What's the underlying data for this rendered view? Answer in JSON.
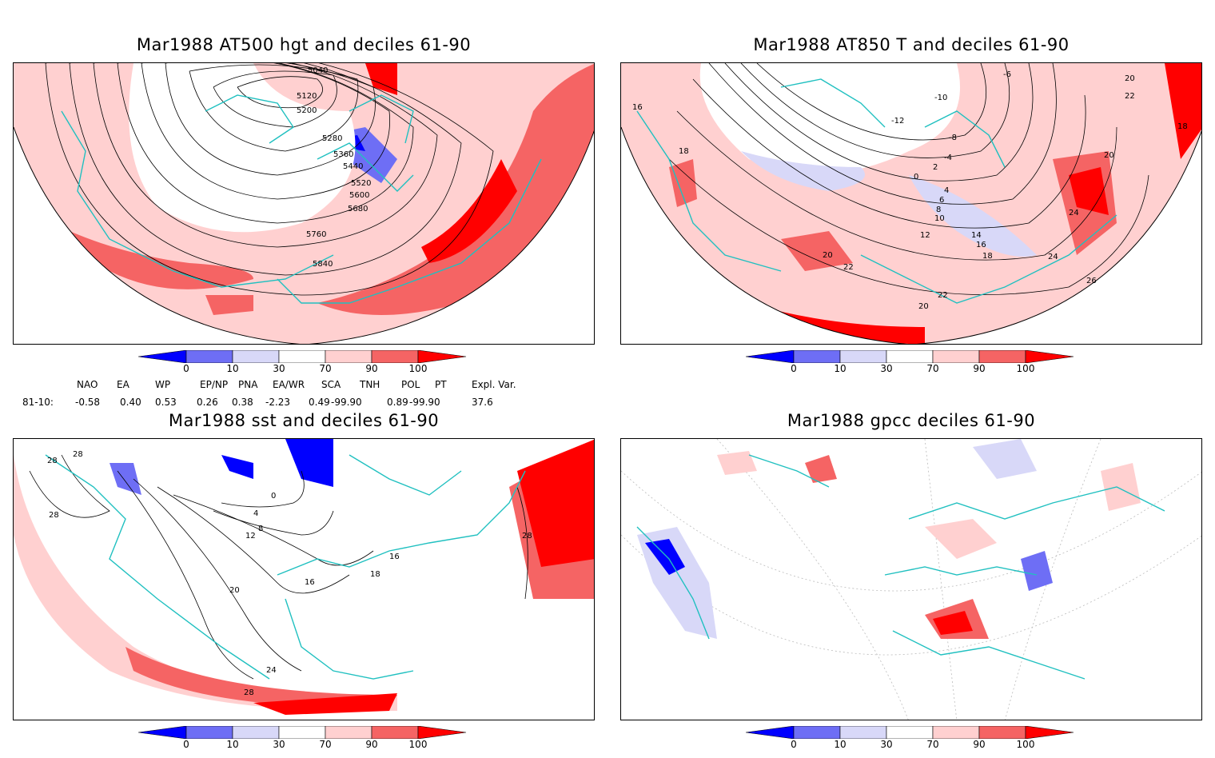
{
  "panels": [
    {
      "title": "Mar1988 AT500 hgt and deciles 61-90",
      "contour_labels": [
        "5040",
        "5120",
        "5200",
        "5280",
        "5360",
        "5440",
        "5520",
        "5600",
        "5680",
        "5760",
        "5840"
      ]
    },
    {
      "title": "Mar1988 AT850 T and deciles 61-90",
      "contour_labels": [
        "16",
        "18",
        "-6",
        "-10",
        "-12",
        "-8",
        "-4",
        "0",
        "2",
        "4",
        "6",
        "8",
        "10",
        "12",
        "14",
        "16",
        "18",
        "20",
        "22",
        "24",
        "26",
        "20",
        "22",
        "18",
        "20",
        "24",
        "22",
        "20"
      ]
    },
    {
      "title": "Mar1988 sst and deciles 61-90",
      "contour_labels": [
        "28",
        "28",
        "28",
        "0",
        "4",
        "8",
        "12",
        "16",
        "16",
        "18",
        "20",
        "24",
        "28",
        "28"
      ]
    },
    {
      "title": "Mar1988 gpcc deciles 61-90",
      "contour_labels": []
    }
  ],
  "colorbar": {
    "ticks": [
      "0",
      "10",
      "30",
      "70",
      "90",
      "100"
    ],
    "colors": [
      "#0000ff",
      "#6e6ef5",
      "#d8d8f8",
      "#ffffff",
      "#ffd0d0",
      "#f56464",
      "#ff0000"
    ]
  },
  "indices": {
    "headers": [
      "NAO",
      "EA",
      "WP",
      "EP/NP",
      "PNA",
      "EA/WR",
      "SCA",
      "TNH",
      "POL",
      "PT",
      "Expl. Var."
    ],
    "row_label": "81-10:",
    "values": [
      "-0.58",
      "0.40",
      "0.53",
      "0.26",
      "0.38",
      "-2.23",
      "0.49",
      "-99.90",
      "0.89",
      "-99.90",
      "37.6"
    ]
  }
}
